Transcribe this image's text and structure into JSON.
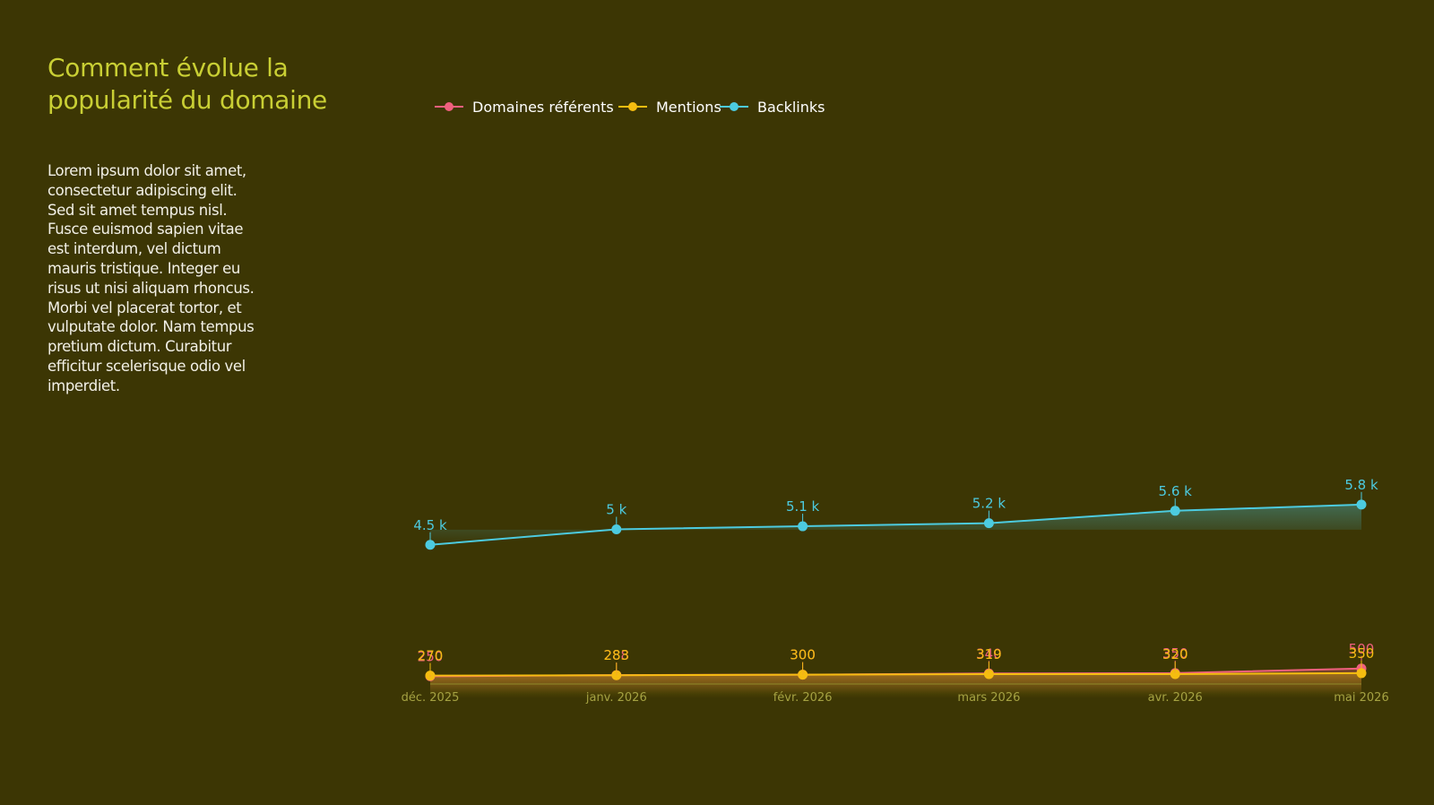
{
  "text": {
    "title": "Comment évolue la popularité du domaine",
    "body": "Lorem ipsum dolor sit amet, consectetur adipiscing elit. Sed sit amet tempus nisl. Fusce euismod sapien vitae est interdum, vel dictum mauris tristique. Integer eu risus ut nisi aliquam rhoncus. Morbi vel placerat tortor, et vulputate dolor. Nam tempus pretium dictum. Curabitur efficitur scelerisque odio vel imperdiet."
  },
  "colors": {
    "background": "#3c3604",
    "title": "#c9cf34",
    "axis": "#8f8a2a"
  },
  "chart_data": {
    "type": "line",
    "categories": [
      "déc. 2025",
      "janv. 2026",
      "févr. 2026",
      "mars 2026",
      "avr. 2026",
      "mai 2026"
    ],
    "ylim": [
      0,
      6000
    ],
    "grid": false,
    "legend_position": "top-left",
    "series": [
      {
        "name": "Domaines référents",
        "color": "#f0607e",
        "values": [
          250,
          288,
          300,
          340,
          350,
          500
        ],
        "labels": [
          "250",
          "288",
          "300",
          "340",
          "350",
          "500"
        ]
      },
      {
        "name": "Mentions",
        "color": "#f5bd10",
        "values": [
          270,
          283,
          300,
          319,
          320,
          350
        ],
        "labels": [
          "270",
          "283",
          "300",
          "319",
          "320",
          "350"
        ]
      },
      {
        "name": "Backlinks",
        "color": "#4ccbe0",
        "values": [
          4500,
          5000,
          5100,
          5200,
          5600,
          5800
        ],
        "labels": [
          "4.5 k",
          "5 k",
          "5.1 k",
          "5.2 k",
          "5.6 k",
          "5.8 k"
        ]
      }
    ]
  }
}
